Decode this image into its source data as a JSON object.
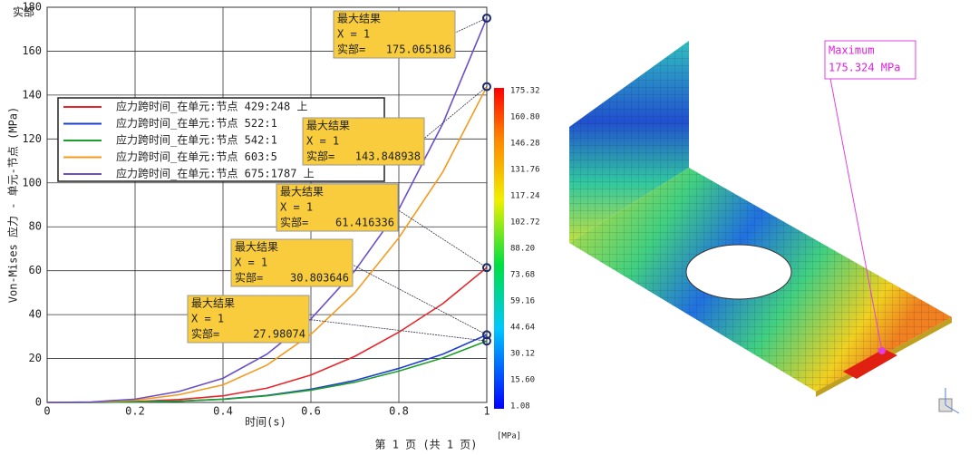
{
  "chart_data": {
    "type": "line",
    "corner_label": "实部",
    "x_label": "时间(s)",
    "y_label": "Von-Mises 应力 - 单元-节点 (MPa)",
    "footer": "第 1 页 (共 1 页)",
    "x": [
      0,
      0.1,
      0.2,
      0.3,
      0.4,
      0.5,
      0.6,
      0.7,
      0.8,
      0.9,
      1
    ],
    "xlim": [
      0,
      1
    ],
    "xticks": [
      0,
      0.2,
      0.4,
      0.6,
      0.8,
      1
    ],
    "ylim": [
      0,
      180
    ],
    "yticks": [
      0,
      20,
      40,
      60,
      80,
      100,
      120,
      140,
      160,
      180
    ],
    "grid": true,
    "series": [
      {
        "name": "应力跨时间_在单元:节点 429:248 上",
        "color": "#e8262a",
        "values": [
          0,
          0.1,
          0.4,
          1.3,
          3,
          6.5,
          12.5,
          21,
          32,
          45,
          61.416336
        ]
      },
      {
        "name": "应力跨时间_在单元:节点 522:1",
        "color": "#1f3fcf",
        "values": [
          0,
          0,
          0.2,
          0.6,
          1.5,
          3.2,
          6,
          10,
          15.5,
          22,
          30.803646
        ]
      },
      {
        "name": "应力跨时间_在单元:节点 542:1",
        "color": "#1e9e2a",
        "values": [
          0,
          0,
          0.2,
          0.6,
          1.4,
          3,
          5.6,
          9.2,
          14.3,
          20.3,
          27.98074
        ]
      },
      {
        "name": "应力跨时间_在单元:节点 603:5",
        "color": "#f59a1e",
        "values": [
          0,
          0.1,
          1,
          3.5,
          8,
          17,
          31,
          50,
          75,
          105,
          143.848938
        ]
      },
      {
        "name": "应力跨时间_在单元:节点 675:1787 上",
        "color": "#6a4fc9",
        "values": [
          0,
          0.2,
          1.5,
          5,
          11,
          22,
          38,
          60,
          88,
          127,
          175.065186
        ]
      }
    ],
    "annotations": [
      {
        "title": "最大结果",
        "x_text": "X = 1",
        "text": "实部=",
        "value": 175.065186
      },
      {
        "title": "最大结果",
        "x_text": "X = 1",
        "text": "实部=",
        "value": 143.848938
      },
      {
        "title": "最大结果",
        "x_text": "X = 1",
        "text": "实部=",
        "value": 61.416336
      },
      {
        "title": "最大结果",
        "x_text": "X = 1",
        "text": "实部=",
        "value": 30.803646
      },
      {
        "title": "最大结果",
        "x_text": "X = 1",
        "text": "实部=",
        "value": 27.98074
      }
    ]
  },
  "colorbar": {
    "labels": [
      "175.32",
      "160.80",
      "146.28",
      "131.76",
      "117.24",
      "102.72",
      "88.20",
      "73.68",
      "59.16",
      "44.64",
      "30.12",
      "15.60",
      "1.08"
    ],
    "unit": "[MPa]"
  },
  "model": {
    "max_label": "Maximum",
    "max_value": "175.324 MPa"
  }
}
